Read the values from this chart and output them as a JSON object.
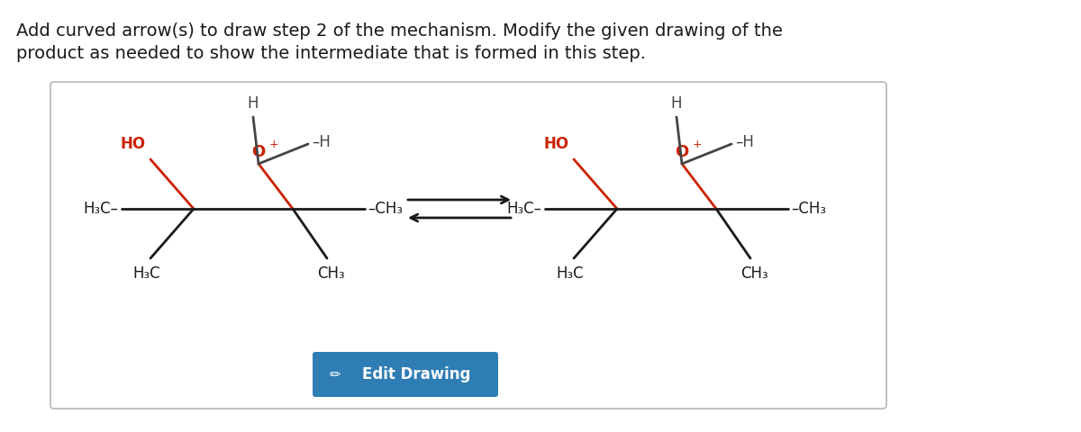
{
  "title_line1": "Add curved arrow(s) to draw step 2 of the mechanism. Modify the given drawing of the",
  "title_line2": "product as needed to show the intermediate that is formed in this step.",
  "title_fontsize": 14,
  "title_color": "#1a1a1a",
  "box_color": "#bbbbbb",
  "bg_color": "#ffffff",
  "red_color": "#cc2200",
  "black_color": "#1a1a1a",
  "dark_gray": "#444444",
  "button_color": "#2e7db5",
  "button_text": "Edit Drawing",
  "button_text_color": "#ffffff"
}
